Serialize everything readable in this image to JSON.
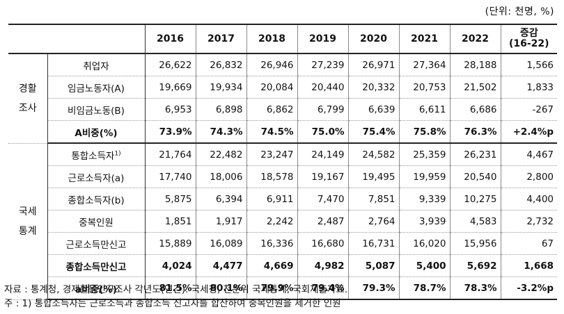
{
  "unit_note": "(단위: 천명, %)",
  "header": {
    "years": [
      "2016",
      "2017",
      "2018",
      "2019",
      "2020",
      "2021",
      "2022"
    ],
    "change_line1": "증감",
    "change_line2": "(16-22)"
  },
  "sections": [
    {
      "group_line1": "경활",
      "group_line2": "조사",
      "rows": [
        {
          "label": "취업자",
          "values": [
            "26,622",
            "26,832",
            "26,946",
            "27,239",
            "26,971",
            "27,364",
            "28,188",
            "1,566"
          ],
          "bold": false
        },
        {
          "label": "임금노동자(A)",
          "values": [
            "19,669",
            "19,934",
            "20,084",
            "20,440",
            "20,332",
            "20,753",
            "21,502",
            "1,833"
          ],
          "bold": false
        },
        {
          "label": "비임금노동(B)",
          "values": [
            "6,953",
            "6,898",
            "6,862",
            "6,799",
            "6,639",
            "6,611",
            "6,686",
            "-267"
          ],
          "bold": false
        },
        {
          "label": "A비중(%)",
          "values": [
            "73.9%",
            "74.3%",
            "74.5%",
            "75.0%",
            "75.4%",
            "75.8%",
            "76.3%",
            "+2.4%p"
          ],
          "bold": true
        }
      ]
    },
    {
      "group_line1": "국세",
      "group_line2": "통계",
      "rows": [
        {
          "label": "통합소득자",
          "sup": "1)",
          "values": [
            "21,764",
            "22,482",
            "23,247",
            "24,149",
            "24,582",
            "25,359",
            "26,231",
            "4,467"
          ],
          "bold": false
        },
        {
          "label": "근로소득자(a)",
          "values": [
            "17,740",
            "18,006",
            "18,578",
            "19,167",
            "19,495",
            "19,959",
            "20,540",
            "2,800"
          ],
          "bold": false
        },
        {
          "label": "종합소득자(b)",
          "values": [
            "5,875",
            "6,394",
            "6,911",
            "7,470",
            "7,851",
            "9,339",
            "10,275",
            "4,400"
          ],
          "bold": false
        },
        {
          "label": "중복인원",
          "values": [
            "1,851",
            "1,917",
            "2,242",
            "2,487",
            "2,764",
            "3,939",
            "4,583",
            "2,732"
          ],
          "bold": false
        },
        {
          "label": "근로소득만신고",
          "values": [
            "15,889",
            "16,089",
            "16,336",
            "16,680",
            "16,731",
            "16,020",
            "15,956",
            "67"
          ],
          "bold": false
        },
        {
          "label": "종합소득만신고",
          "values": [
            "4,024",
            "4,477",
            "4,669",
            "4,982",
            "5,087",
            "5,400",
            "5,692",
            "1,668"
          ],
          "bold": true
        },
        {
          "label": "a비중(%)",
          "values": [
            "81.5%",
            "80.1%",
            "79.9%",
            "79.4%",
            "79.3%",
            "78.7%",
            "78.3%",
            "-3.2%p"
          ],
          "bold": true
        }
      ]
    }
  ],
  "notes": {
    "source": "자료 : 통계청, 경제활동인구조사 각년도(연간). 국세청, 천분위 국세통계, 국회제출자료.",
    "footnote": "  주 : 1) 통합소득자는 근로소득과 종합소득 신고자를 합산하여 중복인원을 제거한 인원"
  }
}
